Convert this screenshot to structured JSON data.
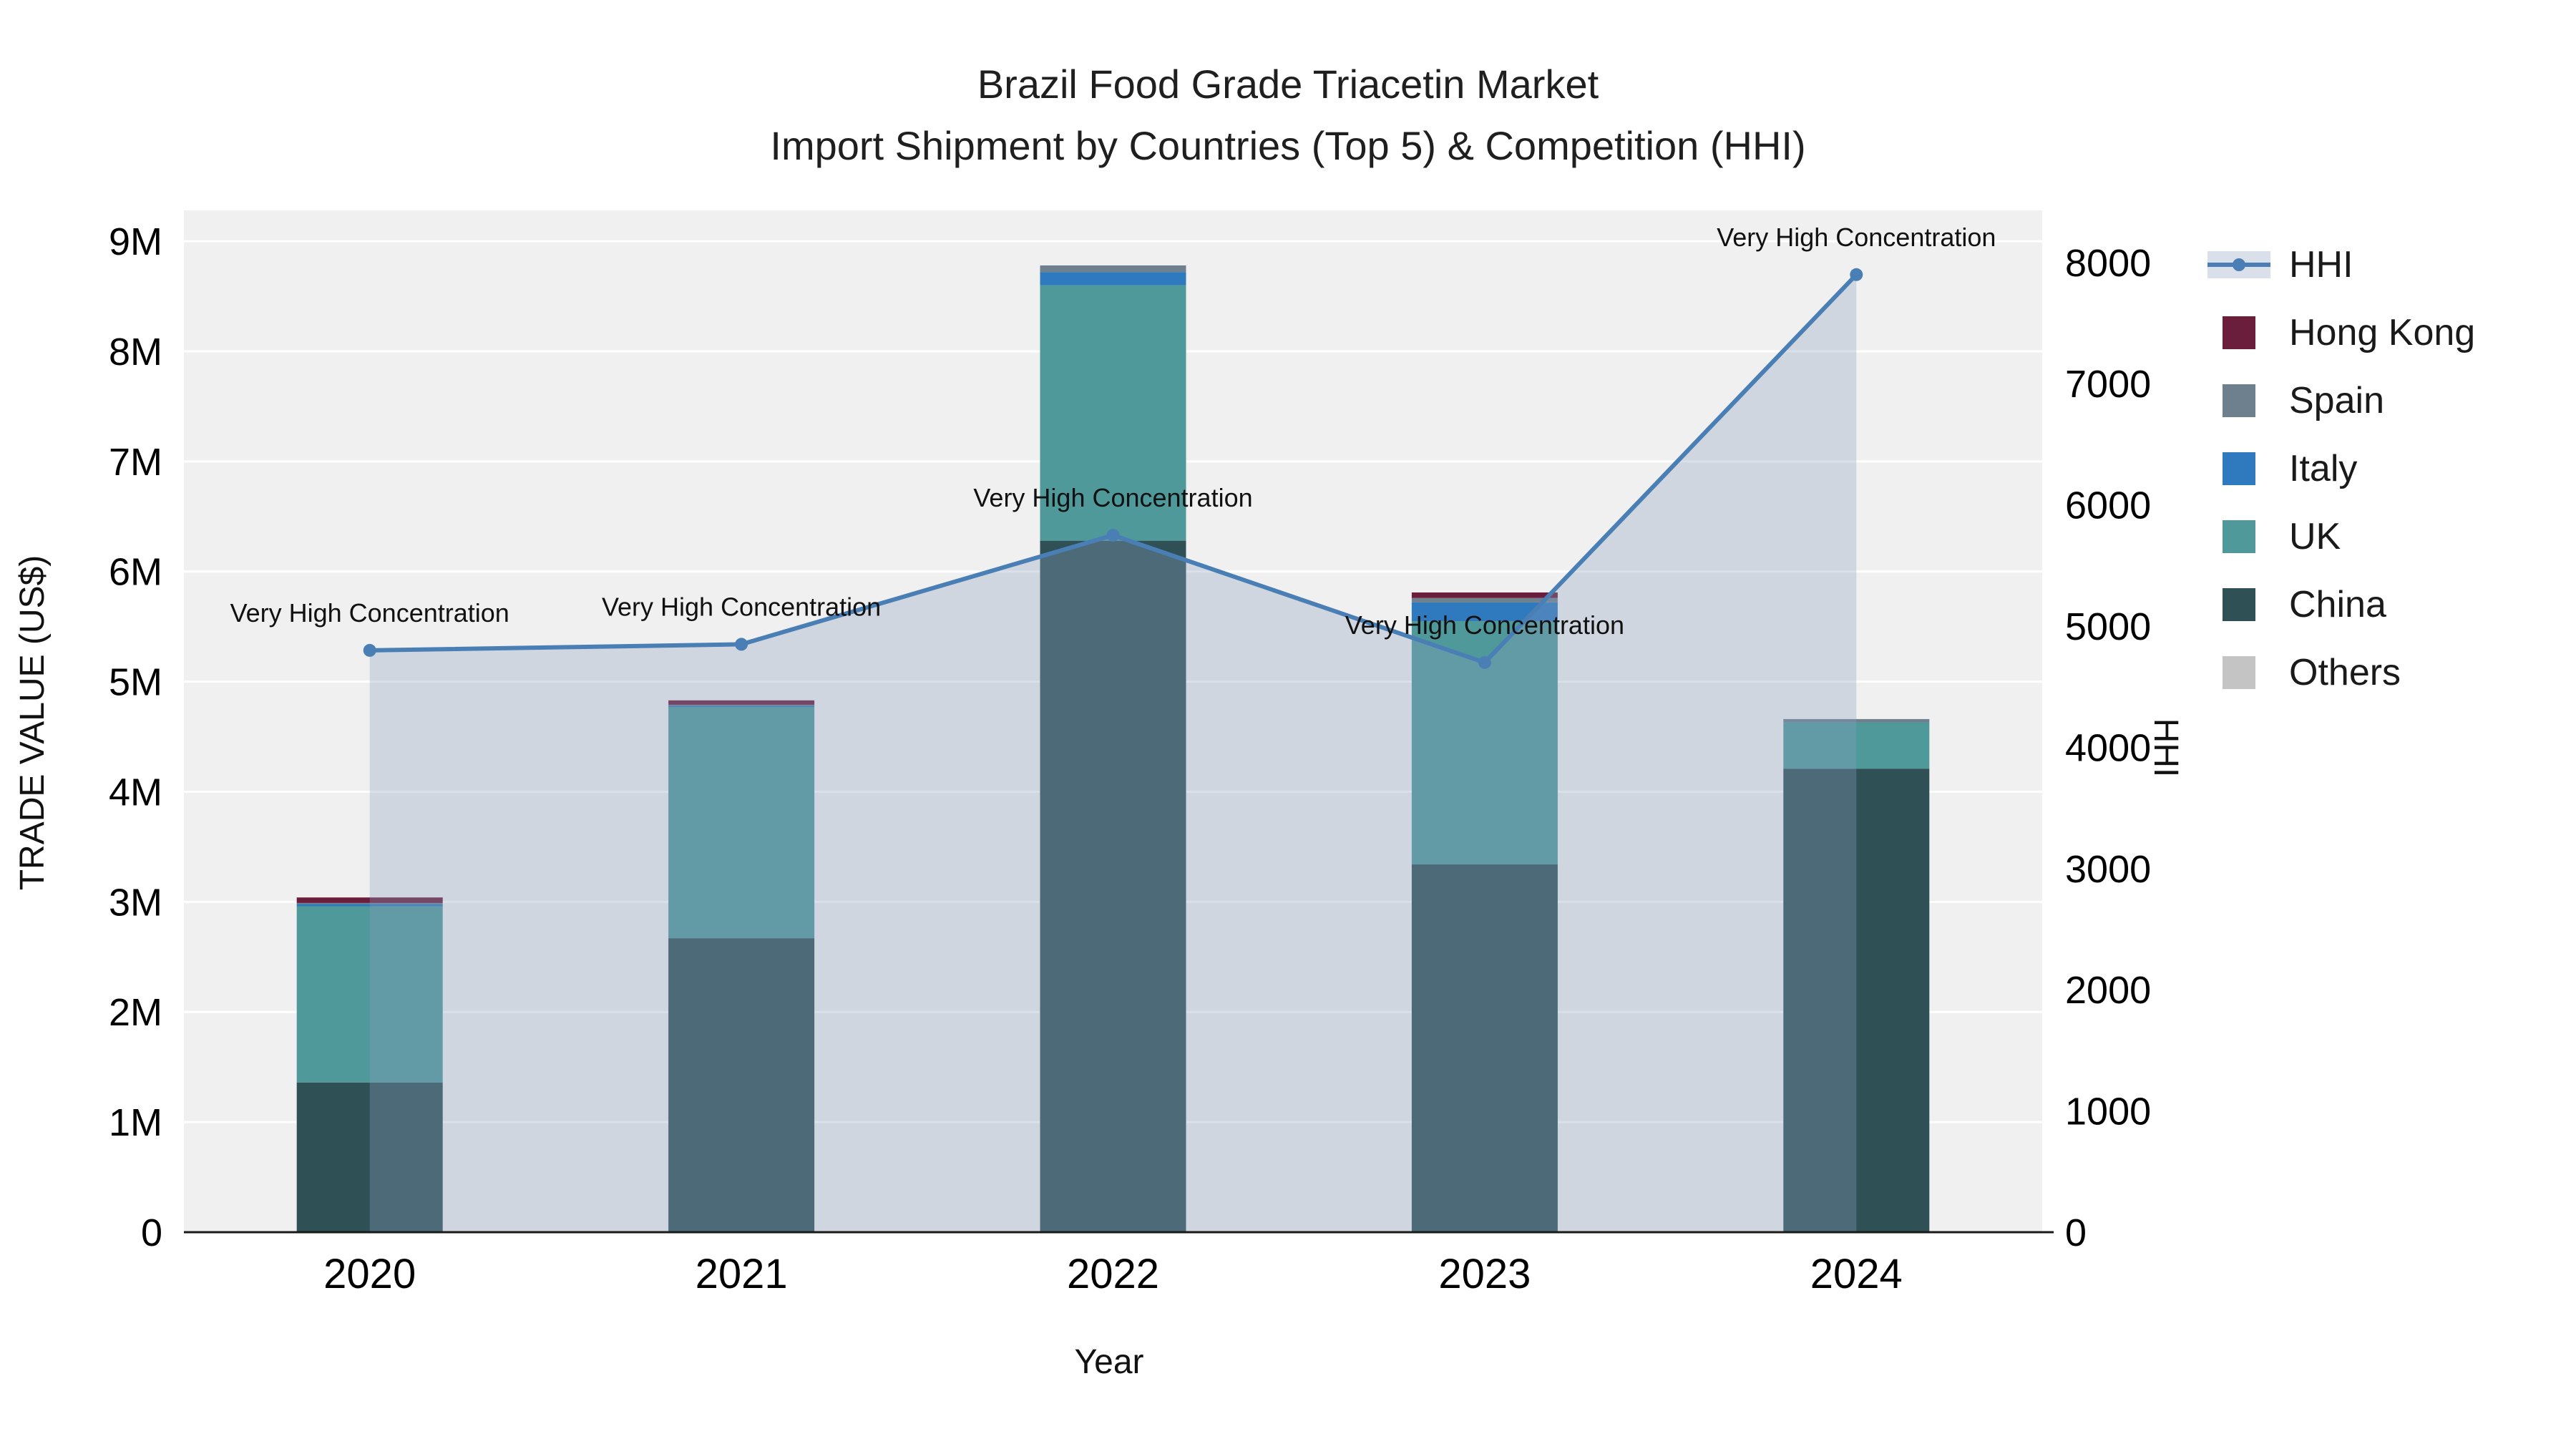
{
  "title": {
    "line1": "Brazil Food Grade Triacetin Market",
    "line2": "Import Shipment by Countries (Top 5) & Competition (HHI)"
  },
  "axes": {
    "y_left": {
      "label": "TRADE VALUE (US$)",
      "ticks": [
        "0",
        "1M",
        "2M",
        "3M",
        "4M",
        "5M",
        "6M",
        "7M",
        "8M",
        "9M"
      ]
    },
    "y_right": {
      "label": "HHI",
      "ticks": [
        "0",
        "1000",
        "2000",
        "3000",
        "4000",
        "5000",
        "6000",
        "7000",
        "8000"
      ]
    },
    "x": {
      "label": "Year",
      "ticks": [
        "2020",
        "2021",
        "2022",
        "2023",
        "2024"
      ]
    }
  },
  "legend": {
    "items": [
      {
        "label": "HHI",
        "type": "line",
        "color": "#4A7FB5"
      },
      {
        "label": "Hong Kong",
        "type": "square",
        "color": "#6B1D3C"
      },
      {
        "label": "Spain",
        "type": "square",
        "color": "#6E7F8D"
      },
      {
        "label": "Italy",
        "type": "square",
        "color": "#2F79BE"
      },
      {
        "label": "UK",
        "type": "square",
        "color": "#4F999B"
      },
      {
        "label": "China",
        "type": "square",
        "color": "#2F5156"
      },
      {
        "label": "Others",
        "type": "square",
        "color": "#C4C4C4"
      }
    ]
  },
  "chart_data": {
    "type": "bar",
    "subtype": "stacked-bars-with-hhi-line-area",
    "title": "Brazil Food Grade Triacetin Market — Import Shipment by Countries (Top 5) & Competition (HHI)",
    "xlabel": "Year",
    "ylabel": "TRADE VALUE (US$)",
    "y2label": "HHI",
    "x": [
      "2020",
      "2021",
      "2022",
      "2023",
      "2024"
    ],
    "bar_value_unit": "million USD",
    "ylim_million_usd": [
      0,
      9.28
    ],
    "y2lim_hhi": [
      0,
      8430
    ],
    "grid": true,
    "grid_color": "#FFFFFF",
    "plot_bg": "#F0F0F0",
    "legend_position": "right",
    "series": [
      {
        "name": "China",
        "color": "#2F5156",
        "values": [
          1.36,
          2.67,
          6.28,
          3.34,
          4.21
        ]
      },
      {
        "name": "UK",
        "color": "#4F999B",
        "values": [
          1.6,
          2.1,
          2.32,
          2.21,
          0.42
        ]
      },
      {
        "name": "Italy",
        "color": "#2F79BE",
        "values": [
          0.02,
          0.01,
          0.12,
          0.17,
          0.0
        ]
      },
      {
        "name": "Spain",
        "color": "#6E7F8D",
        "values": [
          0.01,
          0.01,
          0.06,
          0.04,
          0.03
        ]
      },
      {
        "name": "Hong Kong",
        "color": "#6B1D3C",
        "values": [
          0.05,
          0.04,
          0.0,
          0.05,
          0.0
        ]
      },
      {
        "name": "Others",
        "color": "#C4C4C4",
        "values": [
          0.0,
          0.0,
          0.0,
          0.0,
          0.0
        ]
      }
    ],
    "bar_totals_million_usd": [
      3.04,
      4.83,
      8.78,
      5.81,
      4.66
    ],
    "hhi": {
      "name": "HHI",
      "color": "#4A7FB5",
      "area_fill": "rgba(140,160,190,0.32)",
      "values": [
        4800,
        4850,
        5750,
        4700,
        7900
      ],
      "point_annotations": [
        "Very High Concentration",
        "Very High Concentration",
        "Very High Concentration",
        "Very High Concentration",
        "Very High Concentration"
      ]
    }
  }
}
